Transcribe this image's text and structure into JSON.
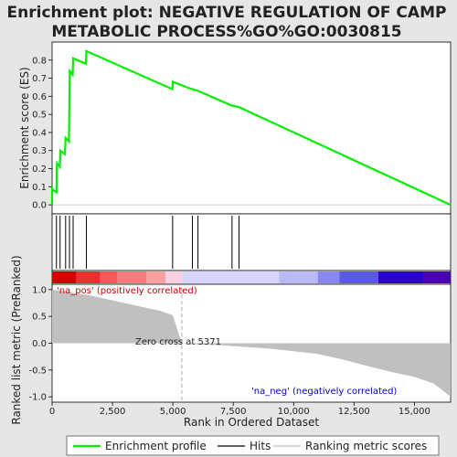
{
  "chart_data": {
    "type": "line",
    "title_line1": "Enrichment plot: NEGATIVE REGULATION OF CAMP",
    "title_line2": "METABOLIC PROCESS%GO%GO:0030815",
    "top_panel": {
      "ylabel": "Enrichment score (ES)",
      "ylim": [
        -0.05,
        0.9
      ],
      "yticks": [
        "0.0",
        "0.1",
        "0.2",
        "0.3",
        "0.4",
        "0.5",
        "0.6",
        "0.7",
        "0.8"
      ],
      "es_curve": [
        [
          0,
          0.0
        ],
        [
          1,
          0.09
        ],
        [
          60,
          0.08
        ],
        [
          180,
          0.07
        ],
        [
          200,
          0.23
        ],
        [
          320,
          0.21
        ],
        [
          340,
          0.3
        ],
        [
          530,
          0.28
        ],
        [
          560,
          0.37
        ],
        [
          700,
          0.35
        ],
        [
          710,
          0.52
        ],
        [
          720,
          0.6
        ],
        [
          730,
          0.74
        ],
        [
          850,
          0.72
        ],
        [
          870,
          0.81
        ],
        [
          1400,
          0.78
        ],
        [
          1420,
          0.85
        ],
        [
          4980,
          0.64
        ],
        [
          5000,
          0.68
        ],
        [
          5780,
          0.64
        ],
        [
          5820,
          0.64
        ],
        [
          6040,
          0.63
        ],
        [
          7420,
          0.55
        ],
        [
          7740,
          0.54
        ],
        [
          16500,
          0.0
        ]
      ],
      "color": "#00ee00"
    },
    "hits": [
      180,
      330,
      560,
      720,
      870,
      1420,
      4990,
      5810,
      6040,
      7450,
      7740
    ],
    "bottom_panel": {
      "ylabel": "Ranked list metric (PreRanked)",
      "ylim": [
        -1.1,
        1.1
      ],
      "yticks": [
        "1.0",
        "0.5",
        "0.0",
        "-0.5",
        "-1.0"
      ],
      "metric_curve": [
        [
          0,
          1.0
        ],
        [
          500,
          0.97
        ],
        [
          1000,
          0.93
        ],
        [
          1500,
          0.9
        ],
        [
          2000,
          0.85
        ],
        [
          2500,
          0.8
        ],
        [
          3000,
          0.75
        ],
        [
          3500,
          0.7
        ],
        [
          4000,
          0.65
        ],
        [
          4500,
          0.6
        ],
        [
          5000,
          0.52
        ],
        [
          5371,
          0.0
        ],
        [
          6000,
          -0.02
        ],
        [
          7000,
          -0.04
        ],
        [
          8000,
          -0.07
        ],
        [
          9000,
          -0.1
        ],
        [
          10000,
          -0.15
        ],
        [
          11000,
          -0.2
        ],
        [
          12000,
          -0.3
        ],
        [
          13000,
          -0.42
        ],
        [
          14000,
          -0.53
        ],
        [
          15000,
          -0.63
        ],
        [
          15800,
          -0.75
        ],
        [
          16500,
          -1.0
        ]
      ],
      "label_pos": "'na_pos' (positively correlated)",
      "label_neg": "'na_neg' (negatively correlated)",
      "zero_cross_label": "Zero cross at 5371",
      "zero_cross": 5371
    },
    "xlabel": "Rank in Ordered Dataset",
    "xlim": [
      0,
      16500
    ],
    "xticks": [
      "0",
      "2,500",
      "5,000",
      "7,500",
      "10,000",
      "12,500",
      "15,000"
    ],
    "heat_bands": [
      {
        "from": 0,
        "to": 1000,
        "color": "#d40000"
      },
      {
        "from": 1000,
        "to": 2000,
        "color": "#e83030"
      },
      {
        "from": 2000,
        "to": 2700,
        "color": "#f45a5a"
      },
      {
        "from": 2700,
        "to": 3900,
        "color": "#f77c7c"
      },
      {
        "from": 3900,
        "to": 4700,
        "color": "#f9a0a0"
      },
      {
        "from": 4700,
        "to": 5400,
        "color": "#fcd0e0"
      },
      {
        "from": 5400,
        "to": 9400,
        "color": "#d6d6fb"
      },
      {
        "from": 9400,
        "to": 11000,
        "color": "#b9b9f5"
      },
      {
        "from": 11000,
        "to": 11900,
        "color": "#8888ee"
      },
      {
        "from": 11900,
        "to": 13500,
        "color": "#5a5ae0"
      },
      {
        "from": 13500,
        "to": 15400,
        "color": "#2a00cc"
      },
      {
        "from": 15400,
        "to": 16500,
        "color": "#4b00b0"
      }
    ],
    "legend": {
      "items": [
        "Enrichment profile",
        "Hits",
        "Ranking metric scores"
      ]
    }
  }
}
